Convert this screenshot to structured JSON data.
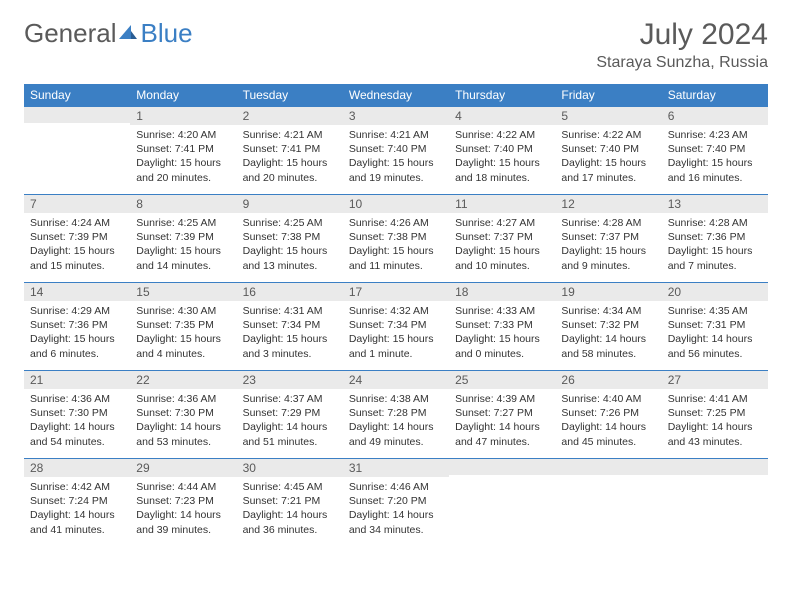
{
  "logo": {
    "text1": "General",
    "text2": "Blue"
  },
  "title": "July 2024",
  "location": "Staraya Sunzha, Russia",
  "colors": {
    "header_bg": "#3b7fc4",
    "header_text": "#ffffff",
    "daynum_bg": "#eaeaea",
    "border": "#3b7fc4",
    "body_text": "#333333",
    "title_text": "#5a5a5a"
  },
  "weekdays": [
    "Sunday",
    "Monday",
    "Tuesday",
    "Wednesday",
    "Thursday",
    "Friday",
    "Saturday"
  ],
  "weeks": [
    [
      {
        "n": "",
        "sr": "",
        "ss": "",
        "dl": ""
      },
      {
        "n": "1",
        "sr": "Sunrise: 4:20 AM",
        "ss": "Sunset: 7:41 PM",
        "dl": "Daylight: 15 hours and 20 minutes."
      },
      {
        "n": "2",
        "sr": "Sunrise: 4:21 AM",
        "ss": "Sunset: 7:41 PM",
        "dl": "Daylight: 15 hours and 20 minutes."
      },
      {
        "n": "3",
        "sr": "Sunrise: 4:21 AM",
        "ss": "Sunset: 7:40 PM",
        "dl": "Daylight: 15 hours and 19 minutes."
      },
      {
        "n": "4",
        "sr": "Sunrise: 4:22 AM",
        "ss": "Sunset: 7:40 PM",
        "dl": "Daylight: 15 hours and 18 minutes."
      },
      {
        "n": "5",
        "sr": "Sunrise: 4:22 AM",
        "ss": "Sunset: 7:40 PM",
        "dl": "Daylight: 15 hours and 17 minutes."
      },
      {
        "n": "6",
        "sr": "Sunrise: 4:23 AM",
        "ss": "Sunset: 7:40 PM",
        "dl": "Daylight: 15 hours and 16 minutes."
      }
    ],
    [
      {
        "n": "7",
        "sr": "Sunrise: 4:24 AM",
        "ss": "Sunset: 7:39 PM",
        "dl": "Daylight: 15 hours and 15 minutes."
      },
      {
        "n": "8",
        "sr": "Sunrise: 4:25 AM",
        "ss": "Sunset: 7:39 PM",
        "dl": "Daylight: 15 hours and 14 minutes."
      },
      {
        "n": "9",
        "sr": "Sunrise: 4:25 AM",
        "ss": "Sunset: 7:38 PM",
        "dl": "Daylight: 15 hours and 13 minutes."
      },
      {
        "n": "10",
        "sr": "Sunrise: 4:26 AM",
        "ss": "Sunset: 7:38 PM",
        "dl": "Daylight: 15 hours and 11 minutes."
      },
      {
        "n": "11",
        "sr": "Sunrise: 4:27 AM",
        "ss": "Sunset: 7:37 PM",
        "dl": "Daylight: 15 hours and 10 minutes."
      },
      {
        "n": "12",
        "sr": "Sunrise: 4:28 AM",
        "ss": "Sunset: 7:37 PM",
        "dl": "Daylight: 15 hours and 9 minutes."
      },
      {
        "n": "13",
        "sr": "Sunrise: 4:28 AM",
        "ss": "Sunset: 7:36 PM",
        "dl": "Daylight: 15 hours and 7 minutes."
      }
    ],
    [
      {
        "n": "14",
        "sr": "Sunrise: 4:29 AM",
        "ss": "Sunset: 7:36 PM",
        "dl": "Daylight: 15 hours and 6 minutes."
      },
      {
        "n": "15",
        "sr": "Sunrise: 4:30 AM",
        "ss": "Sunset: 7:35 PM",
        "dl": "Daylight: 15 hours and 4 minutes."
      },
      {
        "n": "16",
        "sr": "Sunrise: 4:31 AM",
        "ss": "Sunset: 7:34 PM",
        "dl": "Daylight: 15 hours and 3 minutes."
      },
      {
        "n": "17",
        "sr": "Sunrise: 4:32 AM",
        "ss": "Sunset: 7:34 PM",
        "dl": "Daylight: 15 hours and 1 minute."
      },
      {
        "n": "18",
        "sr": "Sunrise: 4:33 AM",
        "ss": "Sunset: 7:33 PM",
        "dl": "Daylight: 15 hours and 0 minutes."
      },
      {
        "n": "19",
        "sr": "Sunrise: 4:34 AM",
        "ss": "Sunset: 7:32 PM",
        "dl": "Daylight: 14 hours and 58 minutes."
      },
      {
        "n": "20",
        "sr": "Sunrise: 4:35 AM",
        "ss": "Sunset: 7:31 PM",
        "dl": "Daylight: 14 hours and 56 minutes."
      }
    ],
    [
      {
        "n": "21",
        "sr": "Sunrise: 4:36 AM",
        "ss": "Sunset: 7:30 PM",
        "dl": "Daylight: 14 hours and 54 minutes."
      },
      {
        "n": "22",
        "sr": "Sunrise: 4:36 AM",
        "ss": "Sunset: 7:30 PM",
        "dl": "Daylight: 14 hours and 53 minutes."
      },
      {
        "n": "23",
        "sr": "Sunrise: 4:37 AM",
        "ss": "Sunset: 7:29 PM",
        "dl": "Daylight: 14 hours and 51 minutes."
      },
      {
        "n": "24",
        "sr": "Sunrise: 4:38 AM",
        "ss": "Sunset: 7:28 PM",
        "dl": "Daylight: 14 hours and 49 minutes."
      },
      {
        "n": "25",
        "sr": "Sunrise: 4:39 AM",
        "ss": "Sunset: 7:27 PM",
        "dl": "Daylight: 14 hours and 47 minutes."
      },
      {
        "n": "26",
        "sr": "Sunrise: 4:40 AM",
        "ss": "Sunset: 7:26 PM",
        "dl": "Daylight: 14 hours and 45 minutes."
      },
      {
        "n": "27",
        "sr": "Sunrise: 4:41 AM",
        "ss": "Sunset: 7:25 PM",
        "dl": "Daylight: 14 hours and 43 minutes."
      }
    ],
    [
      {
        "n": "28",
        "sr": "Sunrise: 4:42 AM",
        "ss": "Sunset: 7:24 PM",
        "dl": "Daylight: 14 hours and 41 minutes."
      },
      {
        "n": "29",
        "sr": "Sunrise: 4:44 AM",
        "ss": "Sunset: 7:23 PM",
        "dl": "Daylight: 14 hours and 39 minutes."
      },
      {
        "n": "30",
        "sr": "Sunrise: 4:45 AM",
        "ss": "Sunset: 7:21 PM",
        "dl": "Daylight: 14 hours and 36 minutes."
      },
      {
        "n": "31",
        "sr": "Sunrise: 4:46 AM",
        "ss": "Sunset: 7:20 PM",
        "dl": "Daylight: 14 hours and 34 minutes."
      },
      {
        "n": "",
        "sr": "",
        "ss": "",
        "dl": ""
      },
      {
        "n": "",
        "sr": "",
        "ss": "",
        "dl": ""
      },
      {
        "n": "",
        "sr": "",
        "ss": "",
        "dl": ""
      }
    ]
  ]
}
